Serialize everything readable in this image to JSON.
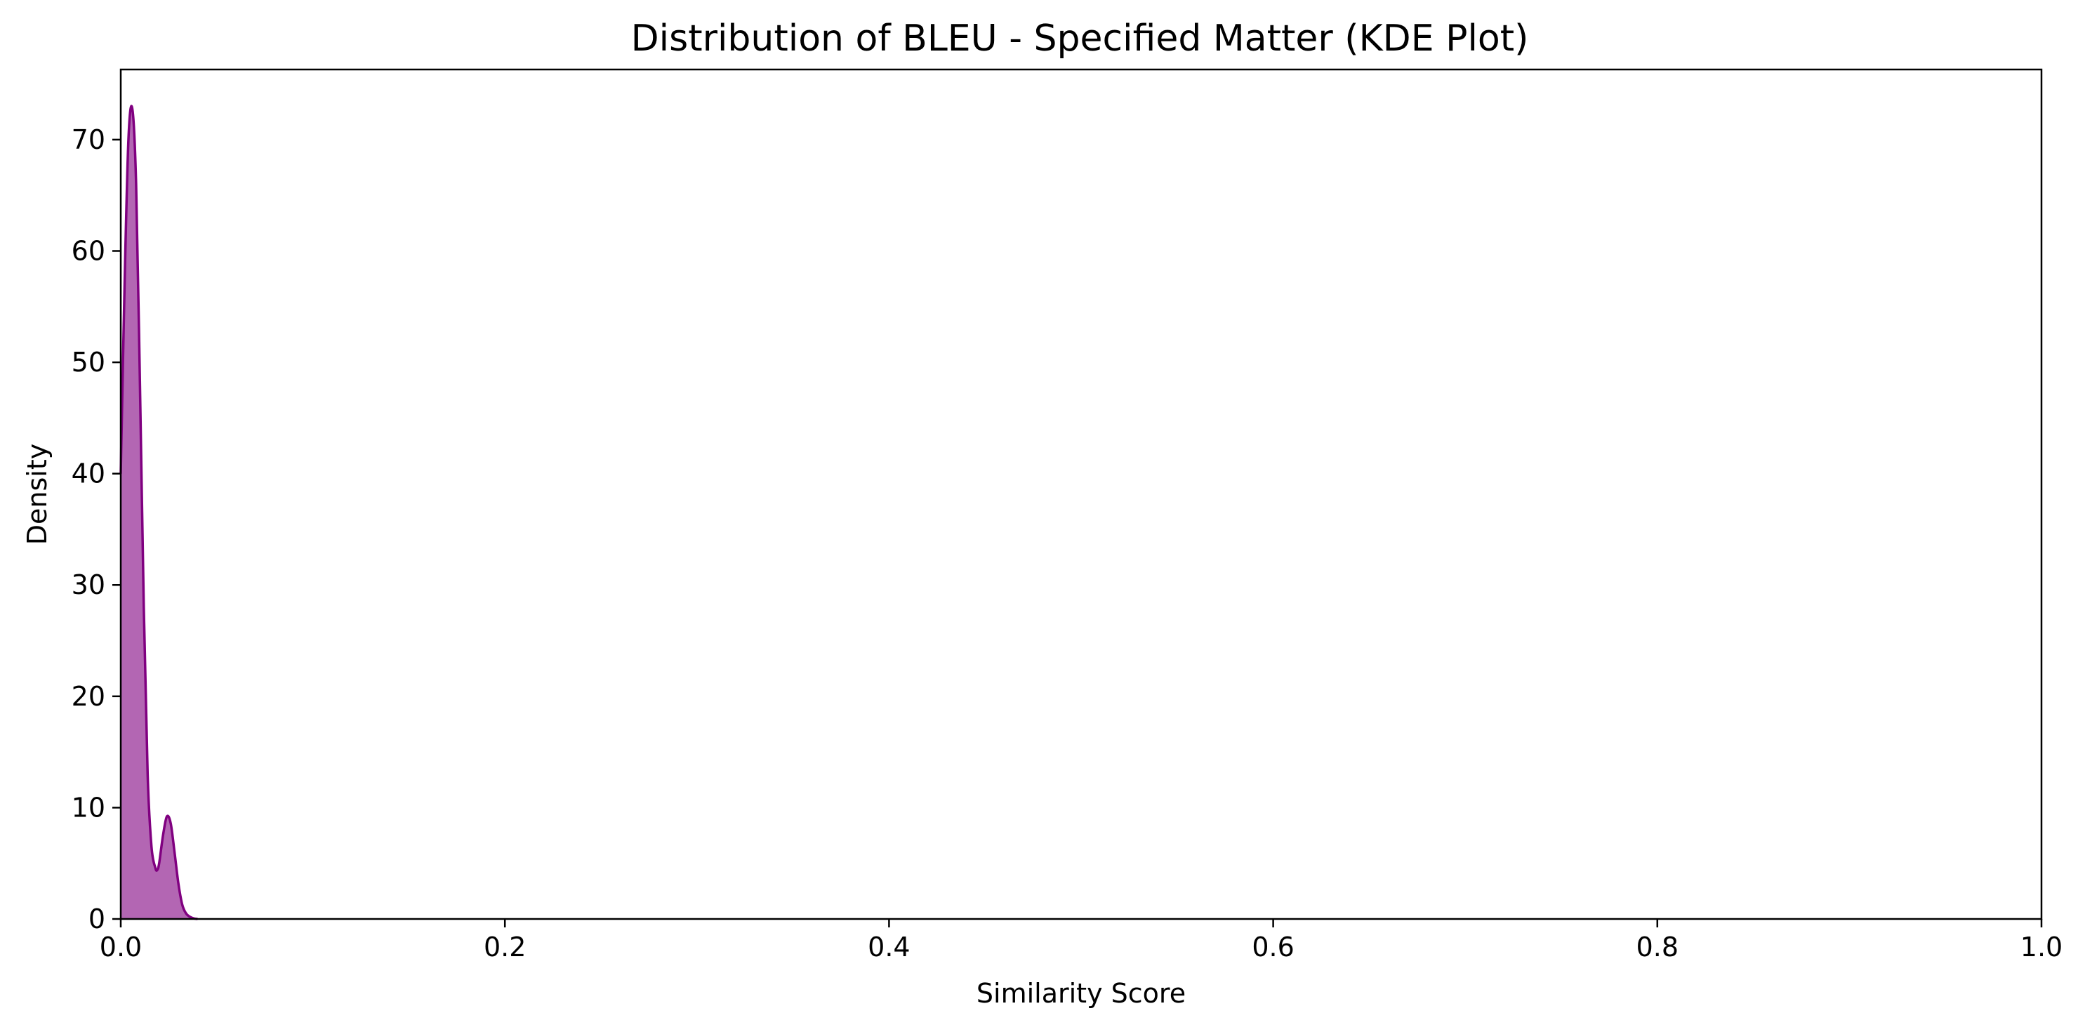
{
  "chart_data": {
    "type": "area",
    "title": "Distribution of BLEU - Specified Matter (KDE Plot)",
    "xlabel": "Similarity Score",
    "ylabel": "Density",
    "xlim": [
      0.0,
      1.0
    ],
    "ylim": [
      0,
      76.3
    ],
    "xticks": [
      0.0,
      0.2,
      0.4,
      0.6,
      0.8,
      1.0
    ],
    "xtick_labels": [
      "0.0",
      "0.2",
      "0.4",
      "0.6",
      "0.8",
      "1.0"
    ],
    "yticks": [
      0,
      10,
      20,
      30,
      40,
      50,
      60,
      70
    ],
    "ytick_labels": [
      "0",
      "10",
      "20",
      "30",
      "40",
      "50",
      "60",
      "70"
    ],
    "grid": false,
    "legend": null,
    "series": [
      {
        "color": "#800080",
        "x": [
          0.0,
          0.002,
          0.004,
          0.006,
          0.008,
          0.01,
          0.012,
          0.014,
          0.016,
          0.018,
          0.019,
          0.02,
          0.022,
          0.024,
          0.026,
          0.028,
          0.03,
          0.032,
          0.034,
          0.036,
          0.038,
          0.04
        ],
        "y": [
          40,
          57,
          70,
          72.8,
          66,
          48,
          28,
          13,
          6.5,
          4.6,
          4.4,
          5.0,
          7.5,
          9.2,
          8.6,
          6.0,
          3.2,
          1.3,
          0.5,
          0.2,
          0.05,
          0
        ]
      }
    ]
  }
}
